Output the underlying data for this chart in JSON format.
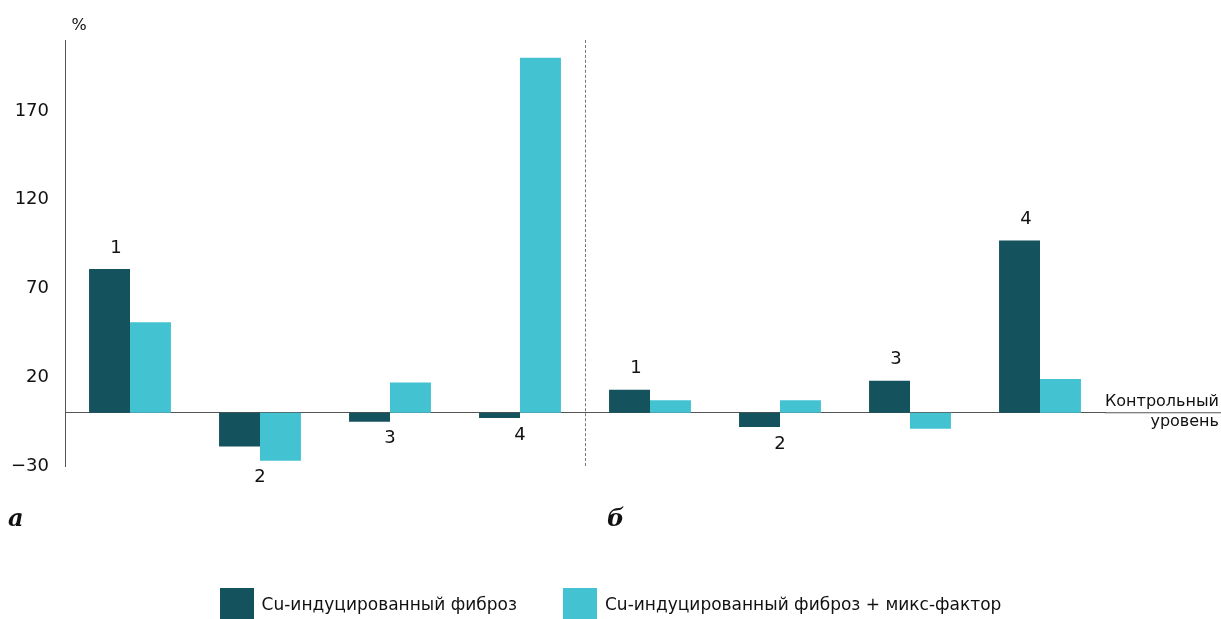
{
  "chart_data": {
    "type": "bar",
    "ylabel": "%",
    "categories": [
      "1",
      "2",
      "3",
      "4",
      "1",
      "2",
      "3",
      "4"
    ],
    "series": [
      {
        "name": "Cu-индуцированный фиброз",
        "color": "#14525e",
        "values": [
          81,
          -19,
          -5,
          -3,
          13,
          -8,
          18,
          97
        ]
      },
      {
        "name": "Cu-индуцированный фиброз + микс-фактор",
        "color": "#43c3d2",
        "values": [
          51,
          -27,
          17,
          200,
          7,
          7,
          -9,
          19
        ]
      }
    ],
    "ylim": [
      -30,
      210
    ],
    "yticks": [
      -30,
      20,
      70,
      120,
      170
    ],
    "grid": false,
    "legend": "bottom",
    "tick_labels": "y",
    "annotations": [
      "а",
      "б",
      "Контрольный уровень"
    ]
  }
}
